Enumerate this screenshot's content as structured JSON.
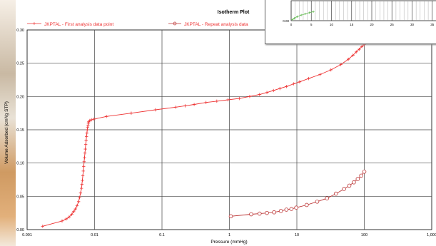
{
  "chart_data": [
    {
      "type": "line",
      "title": "Isotherm Plot",
      "xlabel": "Pressure (mmHg)",
      "ylabel": "Volume Adsorbed (cm³/g STP)",
      "xscale": "log",
      "xlim": [
        0.001,
        1000
      ],
      "ylim": [
        0,
        0.3
      ],
      "grid": true,
      "legend_position": "top",
      "x_tick_labels": [
        "0.001",
        "0.01",
        "0.1",
        "1",
        "10",
        "100",
        "1,000"
      ],
      "y_tick_labels": [
        "0.00",
        "0.05",
        "0.10",
        "0.15",
        "0.20",
        "0.25",
        "0.30"
      ],
      "series": [
        {
          "name": "JKPTAL - First analysis data point",
          "marker": "plus",
          "color": "#ee3333",
          "x": [
            0.0017,
            0.0033,
            0.0038,
            0.0042,
            0.0046,
            0.0049,
            0.0052,
            0.0055,
            0.0058,
            0.006,
            0.0062,
            0.0064,
            0.0065,
            0.0066,
            0.0067,
            0.0068,
            0.0069,
            0.007,
            0.0071,
            0.0072,
            0.0073,
            0.0074,
            0.0075,
            0.0076,
            0.0077,
            0.0078,
            0.0079,
            0.008,
            0.0081,
            0.0082,
            0.0085,
            0.009,
            0.0098,
            0.015,
            0.035,
            0.08,
            0.16,
            0.22,
            0.3,
            0.45,
            0.65,
            0.95,
            1.4,
            2,
            2.8,
            3.6,
            4.5,
            5.6,
            7,
            9,
            11,
            15,
            22,
            32,
            45,
            58,
            68,
            76,
            84,
            92,
            100
          ],
          "y": [
            0.005,
            0.013,
            0.016,
            0.019,
            0.023,
            0.027,
            0.031,
            0.036,
            0.042,
            0.048,
            0.055,
            0.062,
            0.068,
            0.074,
            0.081,
            0.088,
            0.095,
            0.102,
            0.108,
            0.115,
            0.121,
            0.128,
            0.134,
            0.14,
            0.145,
            0.15,
            0.154,
            0.157,
            0.16,
            0.162,
            0.164,
            0.165,
            0.166,
            0.17,
            0.175,
            0.18,
            0.184,
            0.186,
            0.188,
            0.191,
            0.193,
            0.195,
            0.197,
            0.2,
            0.203,
            0.206,
            0.209,
            0.212,
            0.215,
            0.219,
            0.222,
            0.227,
            0.233,
            0.24,
            0.248,
            0.256,
            0.262,
            0.267,
            0.271,
            0.275,
            0.278
          ]
        },
        {
          "name": "JKPTAL - Repeat analysis data",
          "marker": "circle",
          "color": "#bb3333",
          "x": [
            1.05,
            2.1,
            2.8,
            3.6,
            4.6,
            5.8,
            7,
            8.3,
            9.8,
            14,
            20,
            28,
            38,
            50,
            60,
            70,
            80,
            90,
            100
          ],
          "y": [
            0.02,
            0.023,
            0.024,
            0.025,
            0.026,
            0.028,
            0.03,
            0.031,
            0.033,
            0.037,
            0.042,
            0.047,
            0.054,
            0.061,
            0.066,
            0.071,
            0.076,
            0.081,
            0.087
          ]
        }
      ]
    },
    {
      "type": "scatter",
      "note": "inset plot partially visible at top-right",
      "ylim": [
        0,
        0.1
      ],
      "xlim": [
        0,
        40
      ],
      "y_tick_labels": [
        "0.00"
      ],
      "x_tick_labels": [
        "0",
        "5",
        "10",
        "15",
        "20",
        "25",
        "30",
        "35"
      ],
      "series": [
        {
          "marker": "plus",
          "color": "#66bb55",
          "x": [
            0.3,
            0.8,
            1.5,
            2.5,
            3.5,
            4.5,
            5.5
          ],
          "y": [
            0.005,
            0.012,
            0.02,
            0.028,
            0.034,
            0.04,
            0.045
          ]
        }
      ]
    }
  ]
}
